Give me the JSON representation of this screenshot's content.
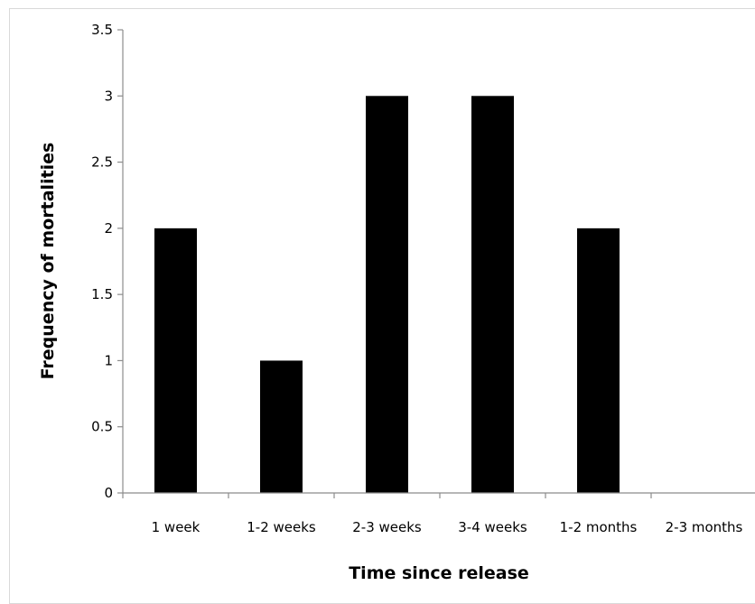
{
  "chart_data": {
    "type": "bar",
    "title": "",
    "xlabel": "Time since release",
    "ylabel": "Frequency of mortalities",
    "categories": [
      "1 week",
      "1-2 weeks",
      "2-3 weeks",
      "3-4 weeks",
      "1-2 months",
      "2-3 months"
    ],
    "values": [
      2,
      1,
      3,
      3,
      2,
      0
    ],
    "ylim": [
      0,
      3.5
    ],
    "yticks": [
      0,
      0.5,
      1,
      1.5,
      2,
      2.5,
      3,
      3.5
    ],
    "ytick_labels": [
      "0",
      "0.5",
      "1",
      "1.5",
      "2",
      "2.5",
      "3",
      "3.5"
    ],
    "grid": false,
    "legend": "none",
    "bar_color": "#000000"
  }
}
